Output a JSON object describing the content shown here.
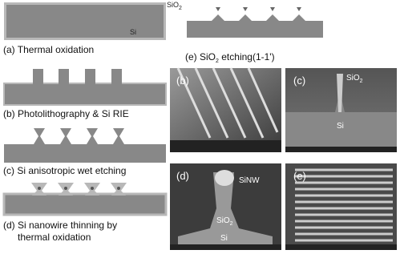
{
  "schematics": {
    "a": {
      "label": "(a) Thermal oxidation",
      "oxide": "SiO",
      "oxide_sub": "2",
      "substrate": "Si"
    },
    "b": {
      "label": "(b) Photolithography & Si RIE"
    },
    "c": {
      "label": "(c) Si anisotropic wet etching"
    },
    "d": {
      "label_lines": [
        "(d) Si nanowire thinning by",
        "thermal oxidation"
      ]
    },
    "e": {
      "label_pre": "(e) SiO",
      "label_sub": "2",
      "label_post": " etching(1-1')"
    }
  },
  "sem": [
    {
      "tag": "(b)"
    },
    {
      "tag": "(c)",
      "oxide": "SiO",
      "oxide_sub": "2",
      "substrate": "Si"
    },
    {
      "tag": "(d)",
      "wire": "SiNW",
      "oxide": "SiO",
      "oxide_sub": "2",
      "substrate": "Si"
    },
    {
      "tag": "(e)"
    }
  ]
}
